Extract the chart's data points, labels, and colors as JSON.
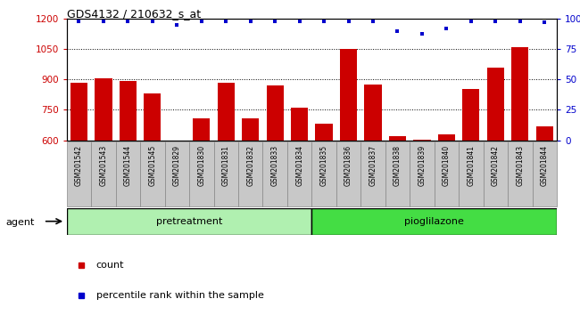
{
  "title": "GDS4132 / 210632_s_at",
  "categories": [
    "GSM201542",
    "GSM201543",
    "GSM201544",
    "GSM201545",
    "GSM201829",
    "GSM201830",
    "GSM201831",
    "GSM201832",
    "GSM201833",
    "GSM201834",
    "GSM201835",
    "GSM201836",
    "GSM201837",
    "GSM201838",
    "GSM201839",
    "GSM201840",
    "GSM201841",
    "GSM201842",
    "GSM201843",
    "GSM201844"
  ],
  "counts": [
    885,
    905,
    895,
    830,
    600,
    710,
    885,
    710,
    870,
    760,
    680,
    1050,
    875,
    620,
    603,
    630,
    855,
    960,
    1060,
    670
  ],
  "percentile_ranks": [
    98,
    98,
    98,
    98,
    95,
    98,
    98,
    98,
    98,
    98,
    98,
    98,
    98,
    90,
    88,
    92,
    98,
    98,
    98,
    97
  ],
  "group1_label": "pretreatment",
  "group2_label": "pioglilazone",
  "group1_count": 10,
  "group2_count": 10,
  "bar_color": "#cc0000",
  "dot_color": "#0000cc",
  "ylim_left": [
    600,
    1200
  ],
  "ylim_right": [
    0,
    100
  ],
  "yticks_left": [
    600,
    750,
    900,
    1050,
    1200
  ],
  "yticks_right": [
    0,
    25,
    50,
    75,
    100
  ],
  "group1_color": "#b0f0b0",
  "group2_color": "#44dd44",
  "tick_bg_color": "#c8c8c8",
  "ylabel_left_color": "#cc0000",
  "ylabel_right_color": "#0000cc"
}
